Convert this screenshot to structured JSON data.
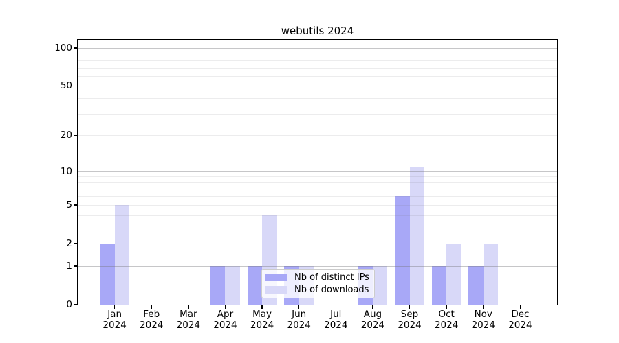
{
  "chart_data": {
    "type": "bar",
    "title": "webutils 2024",
    "categories": [
      "Jan",
      "Feb",
      "Mar",
      "Apr",
      "May",
      "Jun",
      "Jul",
      "Aug",
      "Sep",
      "Oct",
      "Nov",
      "Dec"
    ],
    "year_label": "2024",
    "series": [
      {
        "name": "Nb of distinct IPs",
        "color": "#a8a8f7",
        "values": [
          2,
          0,
          0,
          1,
          1,
          1,
          0,
          1,
          6,
          1,
          1,
          0
        ]
      },
      {
        "name": "Nb of downloads",
        "color": "#d8d8f8",
        "values": [
          5,
          0,
          0,
          1,
          4,
          1,
          0,
          1,
          11,
          2,
          2,
          0
        ]
      }
    ],
    "y_axis": {
      "scale": "log10(1+value)",
      "tick_labels": [
        "0",
        "1",
        "2",
        "5",
        "10",
        "20",
        "50",
        "100"
      ],
      "tick_values": [
        0,
        1,
        2,
        5,
        10,
        20,
        50,
        100
      ],
      "major_gridlines": [
        1,
        10,
        100
      ],
      "minor_gridlines": [
        2,
        3,
        4,
        5,
        6,
        7,
        8,
        9,
        20,
        30,
        40,
        50,
        60,
        70,
        80,
        90
      ],
      "range": [
        0,
        116
      ]
    },
    "x_axis": {
      "label_line2": "2024"
    },
    "grid": true,
    "legend": {
      "position": "lower-center",
      "labels": [
        "Nb of distinct IPs",
        "Nb of downloads"
      ]
    }
  },
  "colors": {
    "bar_distinct_ips": "#a8a8f7",
    "bar_downloads": "#d8d8f8",
    "spine": "#000000",
    "legend_border": "#cccccc",
    "background": "#ffffff"
  }
}
